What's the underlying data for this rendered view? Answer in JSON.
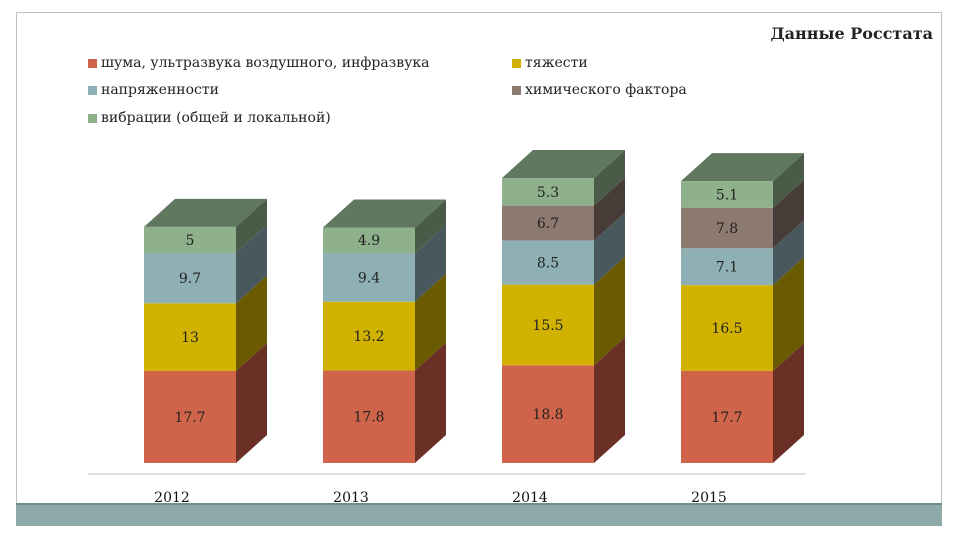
{
  "source_label": "Данные Росстата",
  "legend": [
    {
      "label": "шума, ультразвука воздушного, инфразвука",
      "color": "#d0644a"
    },
    {
      "label": "тяжести",
      "color": "#d2b200"
    },
    {
      "label": "напряженности",
      "color": "#8eb0b4"
    },
    {
      "label": "химического фактора",
      "color": "#8c7a70"
    },
    {
      "label": "вибрации (общей и локальной)",
      "color": "#8eb08a"
    }
  ],
  "chart_data": {
    "type": "bar",
    "stacked": true,
    "three_d": true,
    "categories": [
      "2012",
      "2013",
      "2014",
      "2015"
    ],
    "series": [
      {
        "name": "шума, ультразвука воздушного, инфразвука",
        "values": [
          17.7,
          17.8,
          18.8,
          17.7
        ],
        "labels": [
          "17.7",
          "17.8",
          "18.8",
          "17.7"
        ],
        "color": "#d0644a",
        "side": "#6a3026",
        "top": "#a54a37"
      },
      {
        "name": "тяжести",
        "values": [
          13,
          13.2,
          15.5,
          16.5
        ],
        "labels": [
          "13",
          "13.2",
          "15.5",
          "16.5"
        ],
        "color": "#d2b200",
        "side": "#6a5a00",
        "top": "#a88f00"
      },
      {
        "name": "напряженности",
        "values": [
          9.7,
          9.4,
          8.5,
          7.1
        ],
        "labels": [
          "9.7",
          "9.4",
          "8.5",
          "7.1"
        ],
        "color": "#8eb0b4",
        "side": "#48585c",
        "top": "#6f8e92"
      },
      {
        "name": "химического фактора",
        "values": [
          null,
          null,
          6.7,
          7.8
        ],
        "labels": [
          "",
          "",
          "6.7",
          "7.8"
        ],
        "color": "#8c7a70",
        "side": "#473c37",
        "top": "#6b5d55"
      },
      {
        "name": "вибрации (общей и локальной)",
        "values": [
          5,
          4.9,
          5.3,
          5.1
        ],
        "labels": [
          "5",
          "4.9",
          "5.3",
          "5.1"
        ],
        "color": "#8eb08a",
        "side": "#4a5c48",
        "top": "#607760"
      }
    ],
    "title": "",
    "xlabel": "",
    "ylabel": "",
    "ylim": [
      0,
      66
    ],
    "grid": false,
    "legend_position": "top"
  }
}
